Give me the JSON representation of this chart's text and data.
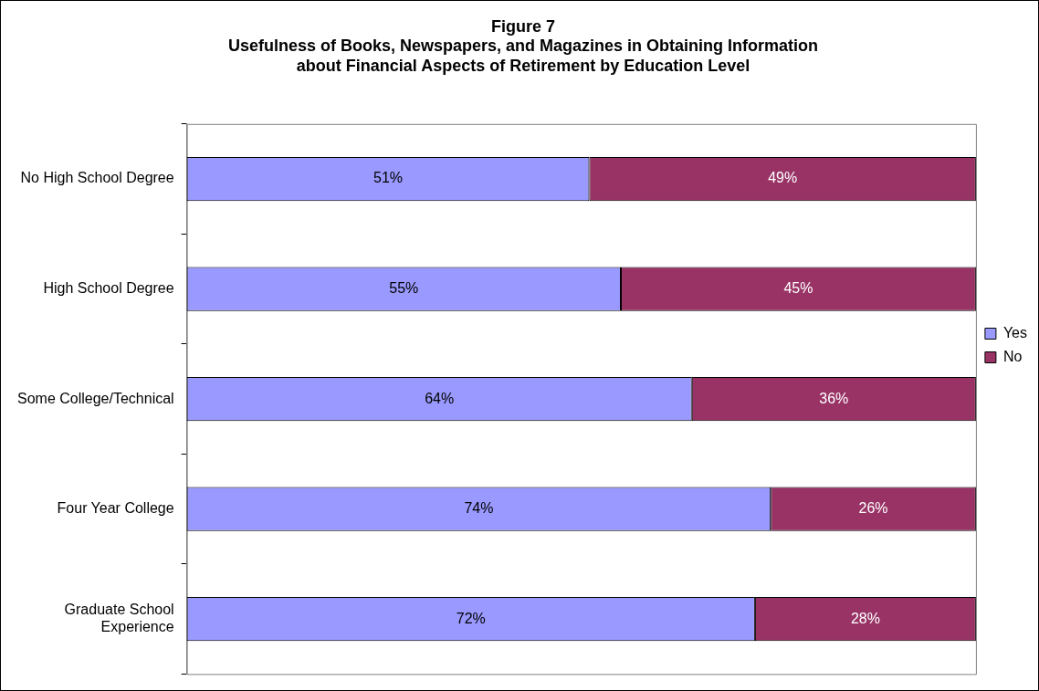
{
  "chart_data": {
    "type": "bar",
    "orientation": "horizontal",
    "stacked": true,
    "title": "Figure 7\nUsefulness of Books, Newspapers, and Magazines in Obtaining Information\nabout Financial Aspects of Retirement by Education Level",
    "categories": [
      "No High School Degree",
      "High School Degree",
      "Some College/Technical",
      "Four Year College",
      "Graduate School Experience"
    ],
    "series": [
      {
        "name": "Yes",
        "color": "#9999ff",
        "values": [
          51,
          55,
          64,
          74,
          72
        ],
        "value_labels": [
          "51%",
          "55%",
          "64%",
          "74%",
          "72%"
        ]
      },
      {
        "name": "No",
        "color": "#993366",
        "values": [
          49,
          45,
          36,
          26,
          28
        ],
        "value_labels": [
          "49%",
          "45%",
          "36%",
          "26%",
          "28%"
        ]
      }
    ],
    "xlim": [
      0,
      100
    ],
    "tick_labels": "y",
    "grid": false,
    "legend": "right"
  }
}
